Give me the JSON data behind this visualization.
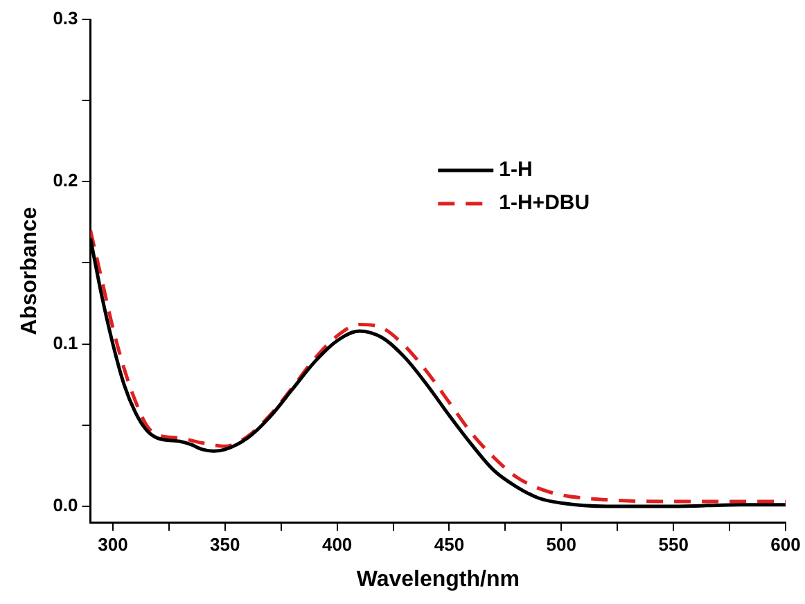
{
  "chart_data": {
    "type": "line",
    "xlabel": "Wavelength/nm",
    "ylabel": "Absorbance",
    "xlim": [
      290,
      600
    ],
    "xticks": [
      300,
      {
        "value": 325,
        "label": null
      },
      350,
      {
        "value": 375,
        "label": null
      },
      400,
      {
        "value": 425,
        "label": null
      },
      450,
      {
        "value": 475,
        "label": null
      },
      500,
      {
        "value": 525,
        "label": null
      },
      550,
      {
        "value": 575,
        "label": null
      },
      600
    ],
    "ylim": [
      -0.01,
      0.3
    ],
    "yticks": [
      {
        "value": 0,
        "label": "0.0"
      },
      {
        "value": 0.05,
        "label": null
      },
      0.1,
      {
        "value": 0.15,
        "label": null
      },
      0.2,
      {
        "value": 0.25,
        "label": null
      },
      0.3
    ],
    "grid": false,
    "legend": "top right",
    "marker": "none",
    "series": [
      {
        "name": "1-H",
        "color": "#000000",
        "line_style": "solid",
        "x": [
          290,
          295,
          300,
          305,
          310,
          315,
          320,
          330,
          335,
          340,
          345,
          350,
          360,
          370,
          380,
          390,
          400,
          410,
          420,
          430,
          440,
          450,
          460,
          470,
          480,
          490,
          500,
          520,
          550,
          580,
          600
        ],
        "values": [
          0.165,
          0.13,
          0.1,
          0.075,
          0.058,
          0.047,
          0.042,
          0.04,
          0.038,
          0.035,
          0.034,
          0.035,
          0.042,
          0.055,
          0.072,
          0.089,
          0.102,
          0.108,
          0.104,
          0.092,
          0.075,
          0.056,
          0.038,
          0.022,
          0.012,
          0.005,
          0.002,
          0.0,
          0.0,
          0.001,
          0.001
        ]
      },
      {
        "name": "1-H+DBU",
        "color": "#e02020",
        "line_style": "dashed",
        "x": [
          290,
          295,
          300,
          305,
          310,
          315,
          320,
          330,
          340,
          350,
          360,
          370,
          380,
          390,
          400,
          410,
          420,
          430,
          440,
          450,
          460,
          470,
          480,
          490,
          500,
          520,
          550,
          580,
          600
        ],
        "values": [
          0.17,
          0.14,
          0.11,
          0.085,
          0.065,
          0.05,
          0.044,
          0.042,
          0.039,
          0.037,
          0.043,
          0.056,
          0.073,
          0.091,
          0.105,
          0.112,
          0.11,
          0.099,
          0.083,
          0.064,
          0.045,
          0.03,
          0.018,
          0.011,
          0.007,
          0.004,
          0.003,
          0.003,
          0.003
        ]
      }
    ]
  }
}
